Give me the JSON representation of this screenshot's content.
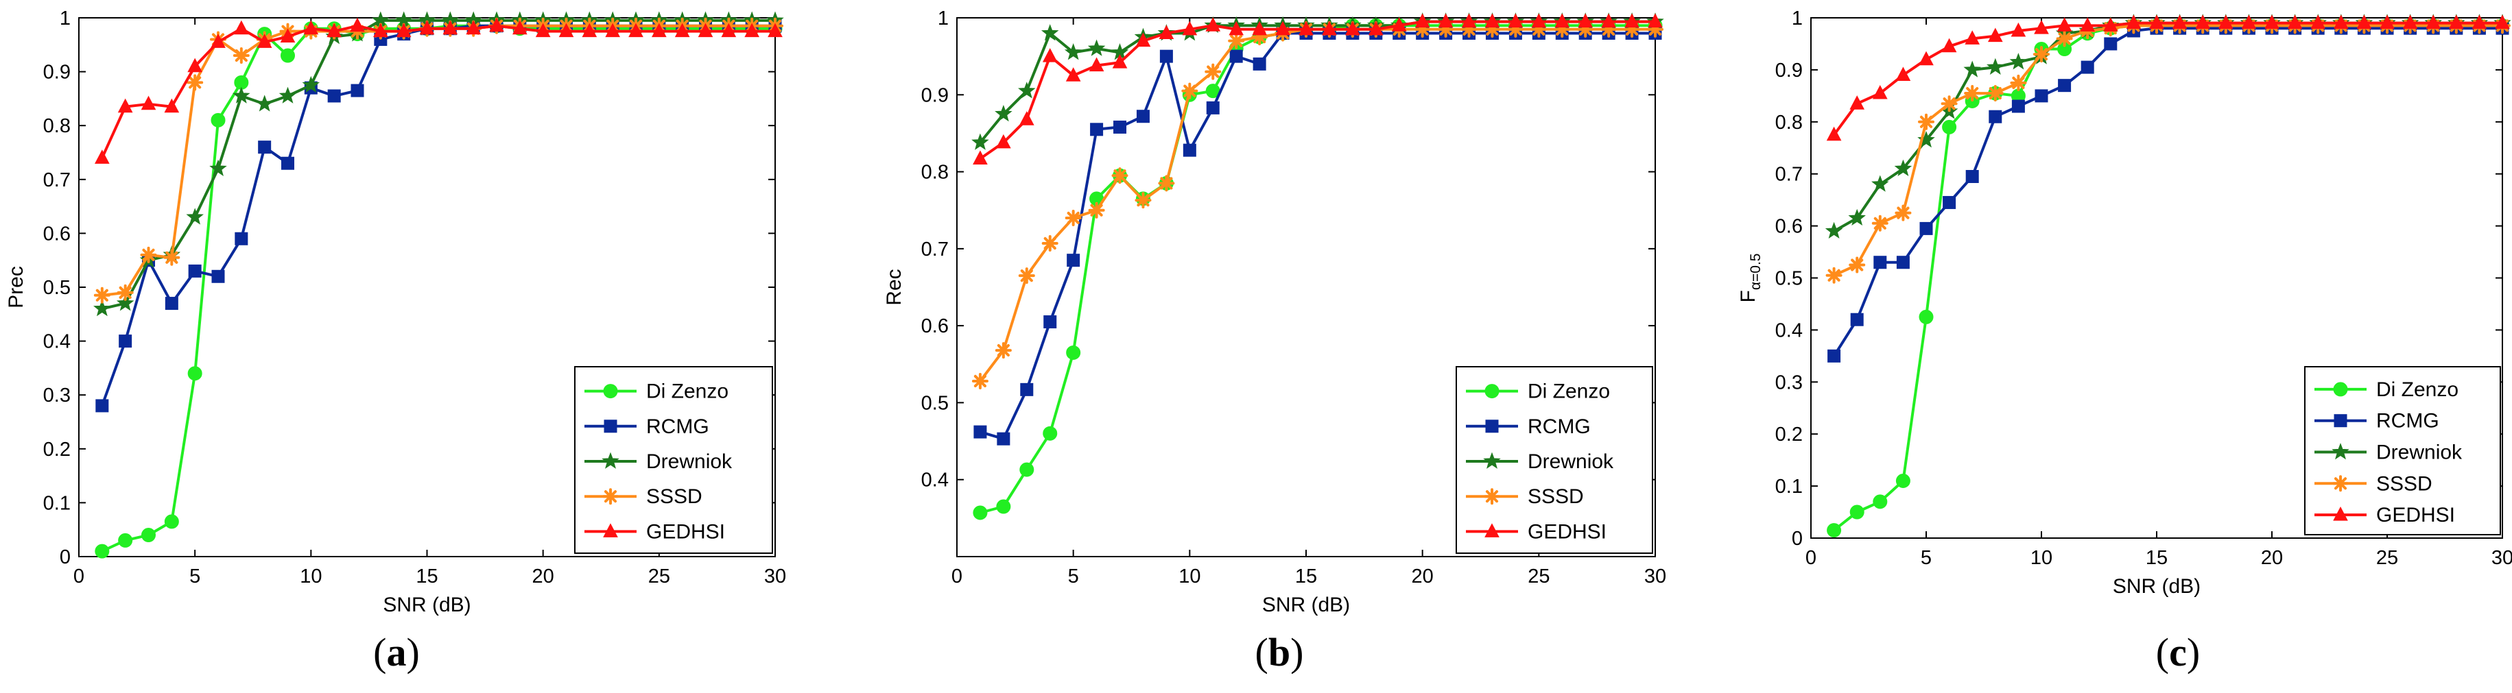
{
  "colors": {
    "Di Zenzo": "#22ee22",
    "RCMG": "#0a2a9a",
    "Drewniok": "#1e7a1e",
    "SSSD": "#ff8c1a",
    "GEDHSI": "#ff1010"
  },
  "chart_data": [
    {
      "type": "line",
      "panel_label": "a",
      "xlabel": "SNR (dB)",
      "ylabel": "Prec",
      "xlim": [
        0,
        30
      ],
      "ylim": [
        0,
        1
      ],
      "xticks": [
        0,
        5,
        10,
        15,
        20,
        25,
        30
      ],
      "yticks": [
        0,
        0.1,
        0.2,
        0.3,
        0.4,
        0.5,
        0.6,
        0.7,
        0.8,
        0.9,
        1
      ],
      "ytick_labels": [
        "0",
        "0.1",
        "0.2",
        "0.3",
        "0.4",
        "0.5",
        "0.6",
        "0.7",
        "0.8",
        "0.9",
        "1"
      ],
      "xtick_labels": [
        "0",
        "5",
        "10",
        "15",
        "20",
        "25",
        "30"
      ],
      "legend": "bottom-right",
      "x": [
        1,
        2,
        3,
        4,
        5,
        6,
        7,
        8,
        9,
        10,
        11,
        12,
        13,
        14,
        15,
        16,
        17,
        18,
        19,
        20,
        21,
        22,
        23,
        24,
        25,
        26,
        27,
        28,
        29,
        30
      ],
      "series": [
        {
          "name": "Di Zenzo",
          "marker": "circle",
          "values": [
            0.01,
            0.03,
            0.04,
            0.065,
            0.34,
            0.81,
            0.88,
            0.97,
            0.93,
            0.98,
            0.98,
            0.97,
            0.98,
            0.98,
            0.98,
            0.985,
            0.985,
            0.985,
            0.98,
            0.98,
            0.98,
            0.98,
            0.98,
            0.98,
            0.98,
            0.98,
            0.98,
            0.98,
            0.98,
            0.98
          ]
        },
        {
          "name": "RCMG",
          "marker": "square",
          "values": [
            0.28,
            0.4,
            0.55,
            0.47,
            0.53,
            0.52,
            0.59,
            0.76,
            0.73,
            0.87,
            0.855,
            0.865,
            0.96,
            0.97,
            0.98,
            0.98,
            0.985,
            0.985,
            0.985,
            0.985,
            0.985,
            0.985,
            0.985,
            0.985,
            0.985,
            0.985,
            0.985,
            0.985,
            0.985,
            0.985
          ]
        },
        {
          "name": "Drewniok",
          "marker": "star",
          "values": [
            0.46,
            0.47,
            0.55,
            0.56,
            0.63,
            0.72,
            0.855,
            0.84,
            0.855,
            0.875,
            0.965,
            0.97,
            0.995,
            0.995,
            0.995,
            0.995,
            0.995,
            0.995,
            0.995,
            0.995,
            0.995,
            0.995,
            0.995,
            0.995,
            0.995,
            0.995,
            0.995,
            0.995,
            0.995,
            0.995
          ]
        },
        {
          "name": "SSSD",
          "marker": "asterisk",
          "values": [
            0.485,
            0.49,
            0.56,
            0.555,
            0.88,
            0.96,
            0.93,
            0.96,
            0.975,
            0.975,
            0.975,
            0.975,
            0.975,
            0.975,
            0.98,
            0.98,
            0.98,
            0.985,
            0.985,
            0.985,
            0.985,
            0.985,
            0.985,
            0.985,
            0.985,
            0.985,
            0.985,
            0.985,
            0.985,
            0.985
          ]
        },
        {
          "name": "GEDHSI",
          "marker": "triangle",
          "values": [
            0.74,
            0.835,
            0.84,
            0.835,
            0.91,
            0.955,
            0.98,
            0.955,
            0.965,
            0.98,
            0.975,
            0.985,
            0.975,
            0.975,
            0.98,
            0.98,
            0.98,
            0.985,
            0.98,
            0.975,
            0.975,
            0.975,
            0.975,
            0.975,
            0.975,
            0.975,
            0.975,
            0.975,
            0.975,
            0.975
          ]
        }
      ]
    },
    {
      "type": "line",
      "panel_label": "b",
      "xlabel": "SNR (dB)",
      "ylabel": "Rec",
      "xlim": [
        0,
        30
      ],
      "ylim": [
        0.3,
        1
      ],
      "xticks": [
        0,
        5,
        10,
        15,
        20,
        25,
        30
      ],
      "yticks": [
        0.4,
        0.5,
        0.6,
        0.7,
        0.8,
        0.9,
        1
      ],
      "ytick_labels": [
        "0.4",
        "0.5",
        "0.6",
        "0.7",
        "0.8",
        "0.9",
        "1"
      ],
      "xtick_labels": [
        "0",
        "5",
        "10",
        "15",
        "20",
        "25",
        "30"
      ],
      "legend": "bottom-right",
      "x": [
        1,
        2,
        3,
        4,
        5,
        6,
        7,
        8,
        9,
        10,
        11,
        12,
        13,
        14,
        15,
        16,
        17,
        18,
        19,
        20,
        21,
        22,
        23,
        24,
        25,
        26,
        27,
        28,
        29,
        30
      ],
      "series": [
        {
          "name": "Di Zenzo",
          "marker": "circle",
          "values": [
            0.357,
            0.365,
            0.413,
            0.46,
            0.565,
            0.765,
            0.795,
            0.765,
            0.785,
            0.9,
            0.905,
            0.96,
            0.975,
            0.98,
            0.985,
            0.985,
            0.99,
            0.99,
            0.99,
            0.99,
            0.99,
            0.99,
            0.99,
            0.99,
            0.99,
            0.99,
            0.99,
            0.99,
            0.99,
            0.99
          ]
        },
        {
          "name": "RCMG",
          "marker": "square",
          "values": [
            0.462,
            0.453,
            0.517,
            0.605,
            0.685,
            0.855,
            0.858,
            0.872,
            0.95,
            0.828,
            0.883,
            0.95,
            0.94,
            0.98,
            0.98,
            0.98,
            0.98,
            0.98,
            0.98,
            0.98,
            0.98,
            0.98,
            0.98,
            0.98,
            0.98,
            0.98,
            0.98,
            0.98,
            0.98,
            0.98
          ]
        },
        {
          "name": "Drewniok",
          "marker": "star",
          "values": [
            0.838,
            0.875,
            0.905,
            0.98,
            0.955,
            0.96,
            0.955,
            0.975,
            0.98,
            0.98,
            0.99,
            0.99,
            0.99,
            0.99,
            0.99,
            0.99,
            0.99,
            0.99,
            0.99,
            0.995,
            0.995,
            0.995,
            0.995,
            0.995,
            0.995,
            0.995,
            0.995,
            0.995,
            0.995,
            0.995
          ]
        },
        {
          "name": "SSSD",
          "marker": "asterisk",
          "values": [
            0.528,
            0.568,
            0.665,
            0.707,
            0.74,
            0.75,
            0.795,
            0.763,
            0.785,
            0.905,
            0.93,
            0.97,
            0.975,
            0.98,
            0.985,
            0.985,
            0.985,
            0.985,
            0.985,
            0.985,
            0.985,
            0.985,
            0.985,
            0.985,
            0.985,
            0.985,
            0.985,
            0.985,
            0.985,
            0.985
          ]
        },
        {
          "name": "GEDHSI",
          "marker": "triangle",
          "values": [
            0.817,
            0.838,
            0.868,
            0.95,
            0.925,
            0.938,
            0.942,
            0.97,
            0.98,
            0.985,
            0.99,
            0.985,
            0.985,
            0.985,
            0.985,
            0.985,
            0.985,
            0.985,
            0.99,
            0.995,
            0.995,
            0.995,
            0.995,
            0.995,
            0.995,
            0.995,
            0.995,
            0.995,
            0.995,
            0.995
          ]
        }
      ]
    },
    {
      "type": "line",
      "panel_label": "c",
      "xlabel": "SNR (dB)",
      "ylabel": "F",
      "ylabel_sub": "α=0.5",
      "xlim": [
        0,
        30
      ],
      "ylim": [
        0,
        1
      ],
      "xticks": [
        0,
        5,
        10,
        15,
        20,
        25,
        30
      ],
      "yticks": [
        0,
        0.1,
        0.2,
        0.3,
        0.4,
        0.5,
        0.6,
        0.7,
        0.8,
        0.9,
        1
      ],
      "ytick_labels": [
        "0",
        "0.1",
        "0.2",
        "0.3",
        "0.4",
        "0.5",
        "0.6",
        "0.7",
        "0.8",
        "0.9",
        "1"
      ],
      "xtick_labels": [
        "0",
        "5",
        "10",
        "15",
        "20",
        "25",
        "30"
      ],
      "legend": "bottom-right",
      "x": [
        1,
        2,
        3,
        4,
        5,
        6,
        7,
        8,
        9,
        10,
        11,
        12,
        13,
        14,
        15,
        16,
        17,
        18,
        19,
        20,
        21,
        22,
        23,
        24,
        25,
        26,
        27,
        28,
        29,
        30
      ],
      "series": [
        {
          "name": "Di Zenzo",
          "marker": "circle",
          "values": [
            0.015,
            0.05,
            0.07,
            0.11,
            0.425,
            0.79,
            0.84,
            0.855,
            0.85,
            0.94,
            0.94,
            0.97,
            0.98,
            0.985,
            0.985,
            0.985,
            0.985,
            0.985,
            0.985,
            0.985,
            0.985,
            0.985,
            0.985,
            0.985,
            0.985,
            0.985,
            0.985,
            0.985,
            0.985,
            0.985
          ]
        },
        {
          "name": "RCMG",
          "marker": "square",
          "values": [
            0.35,
            0.42,
            0.53,
            0.53,
            0.595,
            0.645,
            0.695,
            0.81,
            0.83,
            0.85,
            0.87,
            0.905,
            0.95,
            0.975,
            0.98,
            0.98,
            0.98,
            0.98,
            0.98,
            0.98,
            0.98,
            0.98,
            0.98,
            0.98,
            0.98,
            0.98,
            0.98,
            0.98,
            0.98,
            0.98
          ]
        },
        {
          "name": "Drewniok",
          "marker": "star",
          "values": [
            0.59,
            0.615,
            0.68,
            0.71,
            0.765,
            0.82,
            0.9,
            0.905,
            0.915,
            0.925,
            0.97,
            0.975,
            0.985,
            0.99,
            0.99,
            0.99,
            0.99,
            0.99,
            0.99,
            0.99,
            0.99,
            0.99,
            0.99,
            0.99,
            0.99,
            0.99,
            0.99,
            0.99,
            0.99,
            0.99
          ]
        },
        {
          "name": "SSSD",
          "marker": "asterisk",
          "values": [
            0.505,
            0.525,
            0.605,
            0.625,
            0.8,
            0.835,
            0.855,
            0.855,
            0.875,
            0.93,
            0.96,
            0.975,
            0.98,
            0.985,
            0.985,
            0.985,
            0.985,
            0.985,
            0.985,
            0.985,
            0.985,
            0.985,
            0.985,
            0.985,
            0.985,
            0.985,
            0.985,
            0.985,
            0.985,
            0.985
          ]
        },
        {
          "name": "GEDHSI",
          "marker": "triangle",
          "values": [
            0.775,
            0.835,
            0.855,
            0.89,
            0.92,
            0.945,
            0.96,
            0.965,
            0.975,
            0.98,
            0.985,
            0.985,
            0.985,
            0.99,
            0.99,
            0.99,
            0.99,
            0.99,
            0.99,
            0.99,
            0.99,
            0.99,
            0.99,
            0.99,
            0.99,
            0.99,
            0.99,
            0.99,
            0.99,
            0.99
          ]
        }
      ]
    }
  ]
}
